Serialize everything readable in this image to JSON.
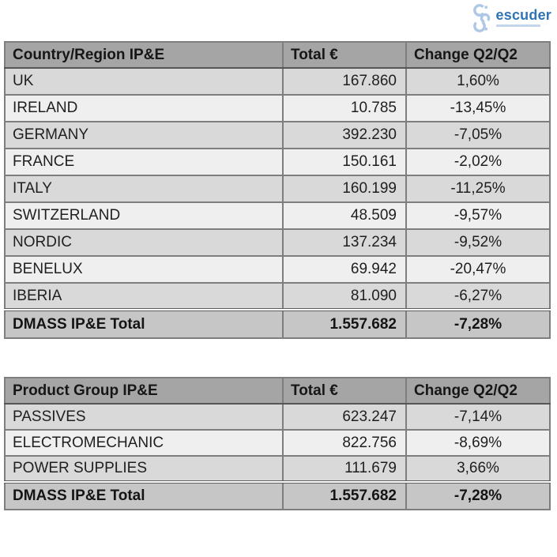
{
  "logo": {
    "text": "escuder"
  },
  "colors": {
    "header_bg": "#a5a5a5",
    "row_dark": "#d9d9d9",
    "row_light": "#efefef",
    "total_bg": "#c6c6c6",
    "border": "#7e7e7e",
    "logo_blue": "#2f74b5",
    "logo_icon_blue": "#aec8e6"
  },
  "tables": [
    {
      "headers": [
        "Country/Region IP&E",
        "Total €",
        "Change Q2/Q2"
      ],
      "rows": [
        [
          "UK",
          "167.860",
          "1,60%"
        ],
        [
          "IRELAND",
          "10.785",
          "-13,45%"
        ],
        [
          "GERMANY",
          "392.230",
          "-7,05%"
        ],
        [
          "FRANCE",
          "150.161",
          "-2,02%"
        ],
        [
          "ITALY",
          "160.199",
          "-11,25%"
        ],
        [
          "SWITZERLAND",
          "48.509",
          "-9,57%"
        ],
        [
          "NORDIC",
          "137.234",
          "-9,52%"
        ],
        [
          "BENELUX",
          "69.942",
          "-20,47%"
        ],
        [
          "IBERIA",
          "81.090",
          "-6,27%"
        ]
      ],
      "total": [
        "DMASS IP&E Total",
        "1.557.682",
        "-7,28%"
      ]
    },
    {
      "headers": [
        "Product Group IP&E",
        "Total €",
        "Change Q2/Q2"
      ],
      "rows": [
        [
          "PASSIVES",
          "623.247",
          "-7,14%"
        ],
        [
          "ELECTROMECHANIC",
          "822.756",
          "-8,69%"
        ],
        [
          "POWER SUPPLIES",
          "111.679",
          "3,66%"
        ]
      ],
      "total": [
        "DMASS IP&E Total",
        "1.557.682",
        "-7,28%"
      ]
    }
  ]
}
